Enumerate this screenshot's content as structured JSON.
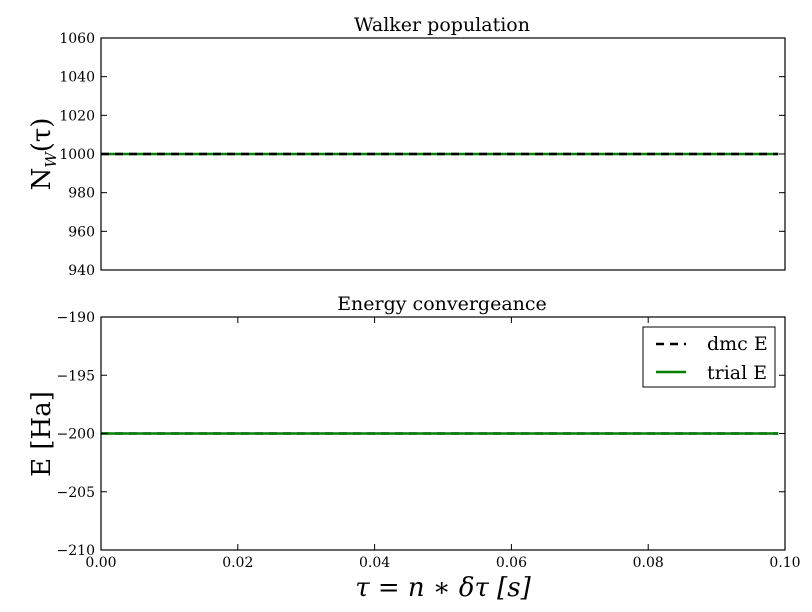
{
  "chart_data": [
    {
      "type": "line",
      "title": "Walker population",
      "ylabel": "N",
      "ylabel_sub": "W",
      "ylabel_tail": "(τ)",
      "xlim": [
        0.0,
        0.1
      ],
      "ylim": [
        940,
        1060
      ],
      "yticks": [
        940,
        960,
        980,
        1000,
        1020,
        1040,
        1060
      ],
      "yticklabels": [
        "940",
        "960",
        "980",
        "1000",
        "1020",
        "1040",
        "1060"
      ],
      "grid": false,
      "series": [
        {
          "x": [
            0.0,
            0.099
          ],
          "values": [
            1000,
            1000
          ],
          "color": "#008000",
          "style": "solid"
        },
        {
          "x": [
            0.0,
            0.099
          ],
          "values": [
            1000,
            1000
          ],
          "color": "#000000",
          "style": "dashed"
        }
      ]
    },
    {
      "type": "line",
      "title": "Energy convergeance",
      "ylabel": "E [Ha]",
      "xlabel": "τ = n ∗ δτ [s]",
      "xlim": [
        0.0,
        0.1
      ],
      "ylim": [
        -210,
        -190
      ],
      "xticks": [
        0.0,
        0.02,
        0.04,
        0.06,
        0.08,
        0.1
      ],
      "xticklabels": [
        "0.00",
        "0.02",
        "0.04",
        "0.06",
        "0.08",
        "0.10"
      ],
      "yticks": [
        -210,
        -205,
        -200,
        -195,
        -190
      ],
      "yticklabels": [
        "−210",
        "−205",
        "−200",
        "−195",
        "−190"
      ],
      "grid": false,
      "legend_position": "top-right",
      "series": [
        {
          "name": "dmc E",
          "x": [
            0.0,
            0.099
          ],
          "values": [
            -200,
            -200
          ],
          "color": "#000000",
          "style": "dashed"
        },
        {
          "name": "trial E",
          "x": [
            0.0,
            0.099
          ],
          "values": [
            -200,
            -200
          ],
          "color": "#008000",
          "style": "solid"
        }
      ]
    }
  ]
}
